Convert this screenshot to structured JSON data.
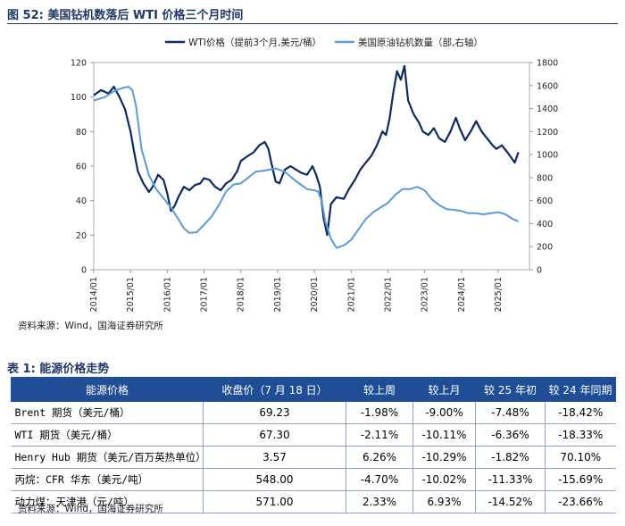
{
  "figure": {
    "title": "图 52:  美国钻机数落后 WTI 价格三个月时间"
  },
  "chart_data": {
    "type": "line",
    "title": "美国钻机数落后 WTI 价格三个月时间",
    "series": [
      {
        "name": "WTI价格（提前3个月,美元/桶）",
        "axis": "left",
        "color": "#0d2b5e",
        "x": [
          2014.0,
          2014.2,
          2014.4,
          2014.55,
          2014.7,
          2014.85,
          2015.0,
          2015.1,
          2015.2,
          2015.35,
          2015.5,
          2015.6,
          2015.75,
          2015.9,
          2016.0,
          2016.1,
          2016.2,
          2016.3,
          2016.45,
          2016.6,
          2016.75,
          2016.9,
          2017.0,
          2017.15,
          2017.3,
          2017.45,
          2017.6,
          2017.75,
          2017.9,
          2018.0,
          2018.2,
          2018.35,
          2018.5,
          2018.65,
          2018.75,
          2018.85,
          2018.95,
          2019.05,
          2019.2,
          2019.35,
          2019.5,
          2019.65,
          2019.8,
          2019.95,
          2020.05,
          2020.15,
          2020.25,
          2020.35,
          2020.45,
          2020.6,
          2020.8,
          2020.95,
          2021.1,
          2021.25,
          2021.4,
          2021.55,
          2021.7,
          2021.85,
          2021.95,
          2022.05,
          2022.15,
          2022.25,
          2022.35,
          2022.45,
          2022.55,
          2022.7,
          2022.85,
          2022.95,
          2023.1,
          2023.25,
          2023.4,
          2023.55,
          2023.7,
          2023.85,
          2023.95,
          2024.1,
          2024.25,
          2024.4,
          2024.55,
          2024.7,
          2024.85,
          2024.95,
          2025.1,
          2025.25,
          2025.35,
          2025.45,
          2025.55
        ],
        "y": [
          101,
          104,
          102,
          106,
          100,
          93,
          80,
          68,
          57,
          50,
          45,
          48,
          55,
          52,
          44,
          34,
          37,
          42,
          48,
          46,
          49,
          50,
          53,
          52,
          48,
          46,
          50,
          52,
          57,
          63,
          66,
          68,
          72,
          74,
          70,
          60,
          51,
          50,
          58,
          60,
          58,
          56,
          55,
          60,
          55,
          48,
          30,
          20,
          38,
          42,
          41,
          47,
          52,
          58,
          62,
          66,
          72,
          80,
          78,
          88,
          103,
          115,
          110,
          118,
          98,
          90,
          85,
          80,
          78,
          82,
          76,
          74,
          80,
          88,
          82,
          75,
          80,
          86,
          80,
          76,
          72,
          70,
          72,
          68,
          65,
          62,
          68
        ]
      },
      {
        "name": "美国原油钻机数量（部,右轴）",
        "axis": "right",
        "color": "#5b9bd5",
        "x": [
          2014.0,
          2014.3,
          2014.6,
          2014.8,
          2014.95,
          2015.05,
          2015.15,
          2015.3,
          2015.5,
          2015.7,
          2015.9,
          2016.1,
          2016.3,
          2016.45,
          2016.6,
          2016.8,
          2017.0,
          2017.2,
          2017.4,
          2017.6,
          2017.8,
          2018.0,
          2018.2,
          2018.4,
          2018.6,
          2018.8,
          2018.95,
          2019.2,
          2019.5,
          2019.8,
          2020.0,
          2020.1,
          2020.2,
          2020.3,
          2020.45,
          2020.6,
          2020.8,
          2021.0,
          2021.2,
          2021.4,
          2021.6,
          2021.8,
          2022.0,
          2022.2,
          2022.4,
          2022.6,
          2022.8,
          2023.0,
          2023.2,
          2023.4,
          2023.6,
          2023.8,
          2024.0,
          2024.2,
          2024.4,
          2024.6,
          2024.8,
          2025.0,
          2025.2,
          2025.4,
          2025.55
        ],
        "y": [
          1470,
          1500,
          1560,
          1580,
          1590,
          1560,
          1420,
          1050,
          820,
          700,
          620,
          540,
          440,
          360,
          320,
          325,
          390,
          460,
          560,
          680,
          740,
          750,
          800,
          850,
          860,
          870,
          880,
          850,
          770,
          700,
          690,
          680,
          600,
          420,
          270,
          190,
          210,
          260,
          350,
          440,
          500,
          540,
          580,
          650,
          700,
          700,
          720,
          690,
          610,
          560,
          525,
          520,
          510,
          490,
          490,
          480,
          490,
          500,
          480,
          440,
          420
        ]
      }
    ],
    "xlabels": [
      "2014/01",
      "2015/01",
      "2016/01",
      "2017/01",
      "2018/01",
      "2019/01",
      "2020/01",
      "2021/01",
      "2022/01",
      "2023/01",
      "2024/01",
      "2025/01"
    ],
    "ylim_left": [
      0,
      120
    ],
    "yticks_left": [
      0,
      20,
      40,
      60,
      80,
      100,
      120
    ],
    "ylim_right": [
      0,
      1800
    ],
    "yticks_right": [
      0,
      200,
      400,
      600,
      800,
      1000,
      1200,
      1400,
      1600,
      1800
    ],
    "legend_position": "top"
  },
  "figure_source": "资料来源：Wind，国海证券研究所",
  "table": {
    "title": "表 1:  能源价格走势",
    "headers": [
      "能源价格",
      "收盘价（7 月 18 日）",
      "较上周",
      "较上月",
      "较 25 年初",
      "较 24 年同期"
    ],
    "rows": [
      [
        "Brent 期货（美元/桶）",
        "69.23",
        "-1.98%",
        "-9.00%",
        "-7.48%",
        "-18.42%"
      ],
      [
        "WTI 期货（美元/桶）",
        "67.30",
        "-2.11%",
        "-10.11%",
        "-6.36%",
        "-18.33%"
      ],
      [
        "Henry Hub 期货（美元/百万英热单位）",
        "3.57",
        "6.26%",
        "-10.29%",
        "-1.82%",
        "70.10%"
      ],
      [
        "丙烷：CFR 华东（美元/吨）",
        "548.00",
        "-4.70%",
        "-10.02%",
        "-11.33%",
        "-15.69%"
      ],
      [
        "动力煤：天津港（元/吨）",
        "571.00",
        "2.33%",
        "6.93%",
        "-14.52%",
        "-23.66%"
      ]
    ],
    "source": "资料来源：Wind，国海证券研究所"
  }
}
